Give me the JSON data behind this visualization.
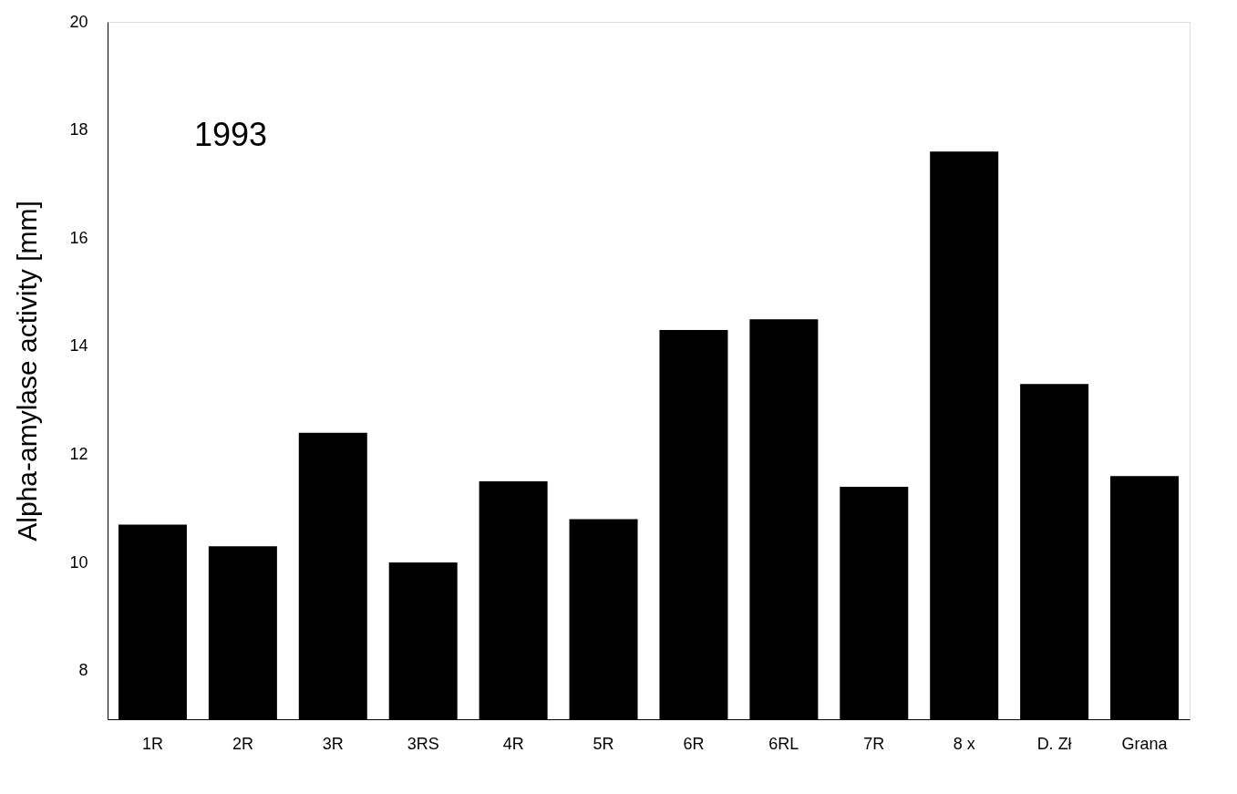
{
  "chart_data": {
    "type": "bar",
    "ylabel": "Alpha-amylase activity  [mm]",
    "categories": [
      "1R",
      "2R",
      "3R",
      "3RS",
      "4R",
      "5R",
      "6R",
      "6RL",
      "7R",
      "8 x",
      "D. Zł",
      "Grana"
    ],
    "values": [
      10.7,
      10.3,
      12.4,
      10.0,
      11.5,
      10.8,
      14.3,
      14.5,
      11.4,
      17.6,
      13.3,
      11.6
    ],
    "color": "#000000",
    "ylim": [
      7.1,
      20
    ],
    "yticks": [
      8,
      10,
      12,
      14,
      16,
      18,
      20
    ],
    "annotations": [
      "1993"
    ],
    "grid": false
  }
}
